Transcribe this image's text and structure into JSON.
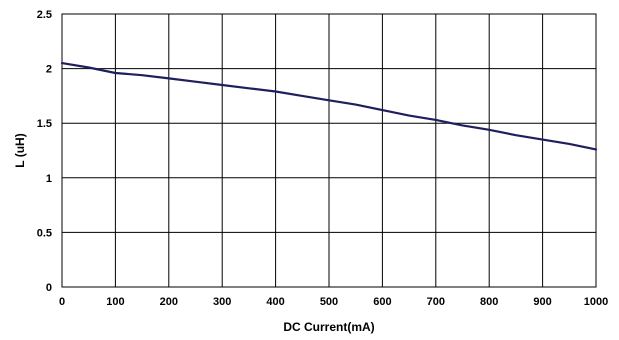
{
  "chart_data": {
    "type": "line",
    "title": "",
    "xlabel": "DC Current(mA)",
    "ylabel": "L (uH)",
    "xlim": [
      0,
      1000
    ],
    "ylim": [
      0,
      2.5
    ],
    "x_ticks": [
      0,
      100,
      200,
      300,
      400,
      500,
      600,
      700,
      800,
      900,
      1000
    ],
    "y_ticks": [
      0,
      0.5,
      1,
      1.5,
      2,
      2.5
    ],
    "x_tick_labels": [
      "0",
      "100",
      "200",
      "300",
      "400",
      "500",
      "600",
      "700",
      "800",
      "900",
      "1000"
    ],
    "y_tick_labels": [
      "0",
      "0.5",
      "1",
      "1.5",
      "2",
      "2.5"
    ],
    "grid": true,
    "legend": "none",
    "series": [
      {
        "color": "#1f1f5e",
        "x": [
          0,
          50,
          100,
          150,
          200,
          250,
          300,
          350,
          400,
          450,
          500,
          550,
          600,
          650,
          700,
          750,
          800,
          850,
          900,
          950,
          1000
        ],
        "y": [
          2.05,
          2.01,
          1.96,
          1.94,
          1.91,
          1.88,
          1.85,
          1.82,
          1.79,
          1.75,
          1.71,
          1.67,
          1.62,
          1.57,
          1.53,
          1.48,
          1.44,
          1.39,
          1.35,
          1.31,
          1.26
        ]
      }
    ]
  }
}
